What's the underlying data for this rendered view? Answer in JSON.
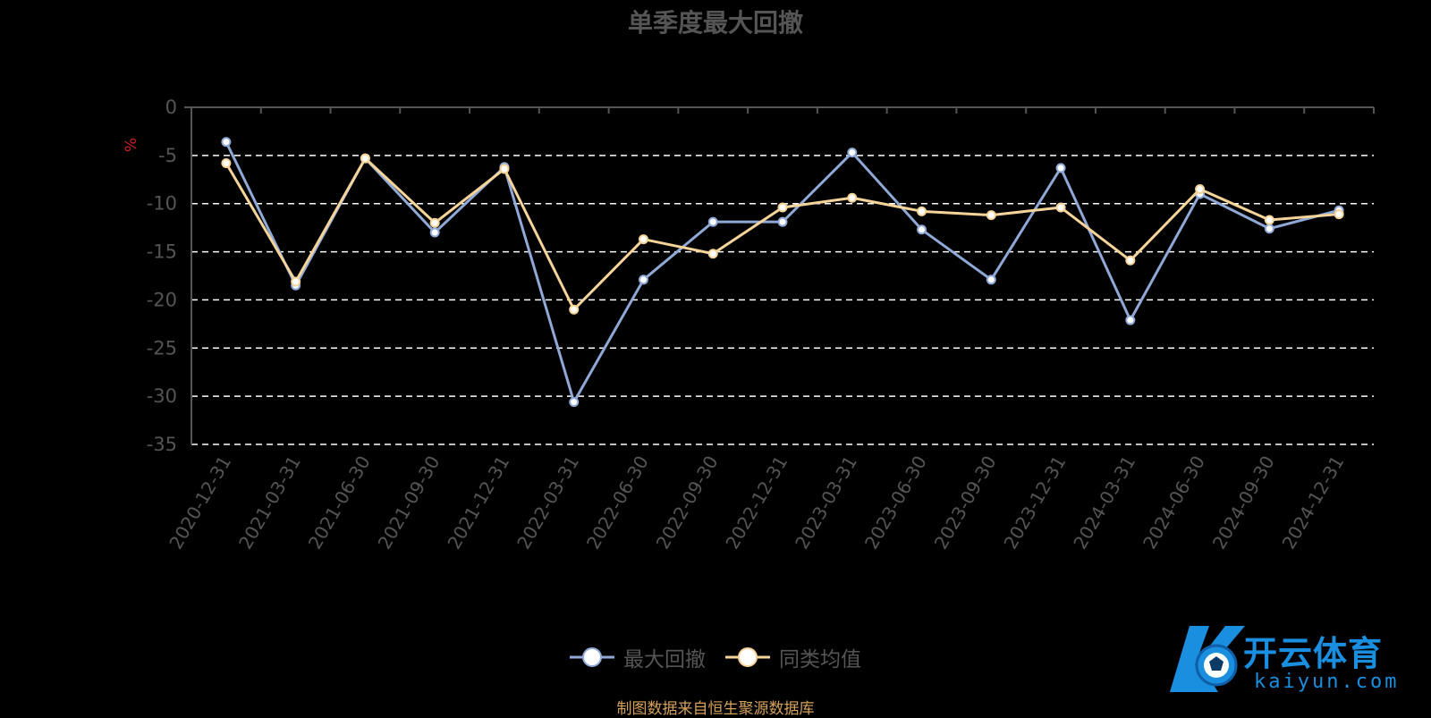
{
  "chart_data": {
    "type": "line",
    "title": "单季度最大回撤",
    "ylabel": "%",
    "ylim": [
      -35,
      0
    ],
    "yticks": [
      0,
      -5,
      -10,
      -15,
      -20,
      -25,
      -30,
      -35
    ],
    "grid": true,
    "legend_position": "bottom",
    "categories": [
      "2020-12-31",
      "2021-03-31",
      "2021-06-30",
      "2021-09-30",
      "2021-12-31",
      "2022-03-31",
      "2022-06-30",
      "2022-09-30",
      "2022-12-31",
      "2023-03-31",
      "2023-06-30",
      "2023-09-30",
      "2023-12-31",
      "2024-03-31",
      "2024-06-30",
      "2024-09-30",
      "2024-12-31"
    ],
    "series": [
      {
        "name": "最大回撤",
        "color": "#8fa8d6",
        "values": [
          -3.6,
          -18.5,
          -5.3,
          -13.0,
          -6.2,
          -30.6,
          -17.9,
          -11.9,
          -11.9,
          -4.7,
          -12.7,
          -17.9,
          -6.3,
          -22.1,
          -9.0,
          -12.6,
          -10.7
        ]
      },
      {
        "name": "同类均值",
        "color": "#f5d49a",
        "values": [
          -5.8,
          -18.1,
          -5.3,
          -12.0,
          -6.4,
          -21.0,
          -13.7,
          -15.2,
          -10.4,
          -9.4,
          -10.8,
          -11.2,
          -10.4,
          -15.9,
          -8.5,
          -11.7,
          -11.1
        ]
      }
    ]
  },
  "source_note": "制图数据来自恒生聚源数据库",
  "watermark": {
    "text": "开云体育",
    "subtext": "kaiyun.com"
  }
}
